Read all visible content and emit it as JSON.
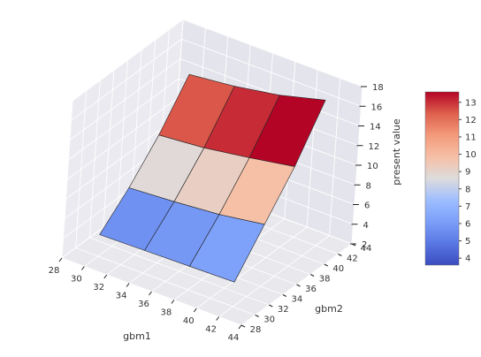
{
  "chart_data": {
    "type": "surface3d",
    "title": "",
    "xlabel": "gbm1",
    "ylabel": "gbm2",
    "zlabel": "present value",
    "xlim": [
      28,
      44
    ],
    "ylim": [
      28,
      44
    ],
    "zlim": [
      2,
      18
    ],
    "xticks": [
      "28",
      "30",
      "32",
      "34",
      "36",
      "38",
      "40",
      "42",
      "44"
    ],
    "yticks": [
      "28",
      "30",
      "32",
      "34",
      "36",
      "38",
      "40",
      "42",
      "44"
    ],
    "zticks": [
      "2",
      "4",
      "6",
      "8",
      "10",
      "12",
      "14",
      "16",
      "18"
    ],
    "x": [
      30,
      34,
      38,
      42
    ],
    "y": [
      30,
      34,
      38,
      42
    ],
    "z": [
      [
        4.2,
        4.3,
        4.4,
        4.5
      ],
      [
        6.9,
        7.2,
        7.6,
        8.3
      ],
      [
        10.2,
        10.6,
        11.3,
        12.1
      ],
      [
        14.3,
        14.8,
        15.6,
        16.8
      ]
    ],
    "colorbar": {
      "cmap": "coolwarm",
      "min": 3.6,
      "max": 13.6,
      "ticks": [
        "4",
        "5",
        "6",
        "7",
        "8",
        "9",
        "10",
        "11",
        "12",
        "13"
      ]
    },
    "grid": true
  }
}
